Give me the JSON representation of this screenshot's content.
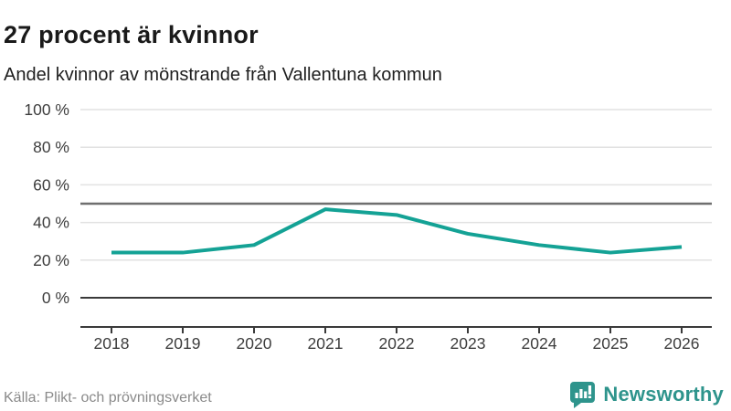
{
  "header": {
    "title": "27 procent är kvinnor",
    "subtitle": "Andel kvinnor av mönstrande från Vallentuna kommun"
  },
  "chart_data": {
    "type": "line",
    "title": "27 procent är kvinnor",
    "subtitle": "Andel kvinnor av mönstrande från Vallentuna kommun",
    "x": [
      2018,
      2019,
      2020,
      2021,
      2022,
      2023,
      2024,
      2025,
      2026
    ],
    "series": [
      {
        "name": "Andel kvinnor av mönstrande",
        "values": [
          24,
          24,
          28,
          47,
          44,
          34,
          28,
          24,
          27
        ]
      }
    ],
    "unit": "%",
    "ylim": [
      0,
      100
    ],
    "yticks": [
      0,
      20,
      40,
      60,
      80,
      100
    ],
    "ytick_suffix": " %",
    "reference_line": 50,
    "grid": true,
    "legend": "none",
    "line_color": "#14a295"
  },
  "footer": {
    "source": "Källa: Plikt- och prövningsverket",
    "brand_name": "Newsworthy"
  },
  "colors": {
    "accent": "#14a295",
    "brand": "#2e948c",
    "grid": "#e2e2e2",
    "reference_line": "#6f6f6f",
    "axis": "#3a3a3a",
    "tick_label": "#3d3d3d"
  }
}
